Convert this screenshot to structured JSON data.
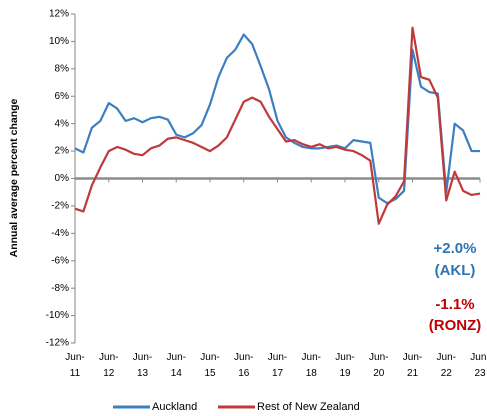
{
  "chart_data": {
    "type": "line",
    "y_axis_label": "Annual average percent change",
    "categories": [
      "Jun-11",
      null,
      null,
      null,
      "Jun-12",
      null,
      null,
      null,
      "Jun-13",
      null,
      null,
      null,
      "Jun-14",
      null,
      null,
      null,
      "Jun-15",
      null,
      null,
      null,
      "Jun-16",
      null,
      null,
      null,
      "Jun-17",
      null,
      null,
      null,
      "Jun-18",
      null,
      null,
      null,
      "Jun-19",
      null,
      null,
      null,
      "Jun-20",
      null,
      null,
      null,
      "Jun-21",
      null,
      null,
      null,
      "Jun-22",
      null,
      null,
      null,
      "Jun-23"
    ],
    "series": [
      {
        "name": "Auckland",
        "color": "#3c7fc1",
        "values": [
          2.2,
          1.9,
          3.7,
          4.2,
          5.5,
          5.1,
          4.2,
          4.4,
          4.1,
          4.4,
          4.5,
          4.3,
          3.2,
          3.0,
          3.3,
          3.9,
          5.4,
          7.4,
          8.8,
          9.4,
          10.5,
          9.8,
          8.2,
          6.5,
          4.2,
          3.0,
          2.6,
          2.3,
          2.2,
          2.2,
          2.3,
          2.4,
          2.2,
          2.8,
          2.7,
          2.6,
          -1.4,
          -1.8,
          -1.5,
          -0.9,
          9.4,
          6.7,
          6.3,
          6.2,
          -1.0,
          4.0,
          3.5,
          2.0,
          2.0
        ]
      },
      {
        "name": "Rest of New Zealand",
        "color": "#c0393b",
        "values": [
          -2.2,
          -2.4,
          -0.5,
          0.8,
          2.0,
          2.3,
          2.1,
          1.8,
          1.7,
          2.2,
          2.4,
          2.9,
          3.0,
          2.8,
          2.6,
          2.3,
          2.0,
          2.4,
          3.0,
          4.3,
          5.6,
          5.9,
          5.6,
          4.5,
          3.6,
          2.7,
          2.8,
          2.5,
          2.3,
          2.5,
          2.2,
          2.3,
          2.1,
          2.0,
          1.7,
          1.3,
          -3.3,
          -1.9,
          -1.3,
          -0.2,
          11.0,
          7.4,
          7.2,
          5.9,
          -1.6,
          0.5,
          -0.9,
          -1.2,
          -1.1
        ]
      }
    ],
    "ylim": [
      -12,
      12
    ],
    "yticks": [
      {
        "value": -12,
        "label": "-12%"
      },
      {
        "value": -10,
        "label": "-10%"
      },
      {
        "value": -8,
        "label": "-8%"
      },
      {
        "value": -6,
        "label": "-6%"
      },
      {
        "value": -4,
        "label": "-4%"
      },
      {
        "value": -2,
        "label": "-2%"
      },
      {
        "value": 0,
        "label": "0%"
      },
      {
        "value": 2,
        "label": "2%"
      },
      {
        "value": 4,
        "label": "4%"
      },
      {
        "value": 6,
        "label": "6%"
      },
      {
        "value": 8,
        "label": "8%"
      },
      {
        "value": 10,
        "label": "10%"
      },
      {
        "value": 12,
        "label": "12%"
      }
    ],
    "annotations": [
      {
        "text": "+2.0%",
        "color": "#2e75b6"
      },
      {
        "text": "(AKL)",
        "color": "#2e75b6"
      },
      {
        "text": "-1.1%",
        "color": "#c00000"
      },
      {
        "text": "(RONZ)",
        "color": "#c00000"
      }
    ]
  }
}
